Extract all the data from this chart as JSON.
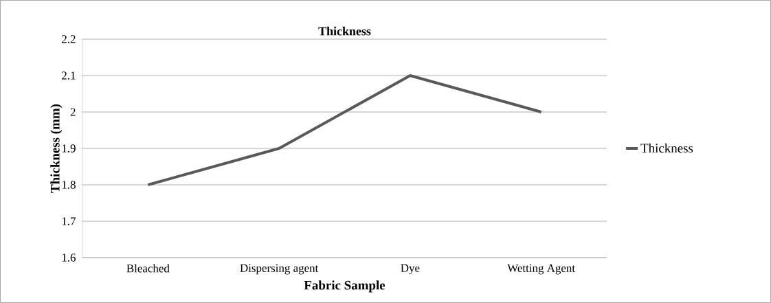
{
  "chart_data": {
    "type": "line",
    "title": "Thickness",
    "xlabel": "Fabric Sample",
    "ylabel": "Thickness (mm)",
    "categories": [
      "Bleached",
      "Dispersing agent",
      "Dye",
      "Wetting Agent"
    ],
    "series": [
      {
        "name": "Thickness",
        "color": "#595959",
        "values": [
          1.8,
          1.9,
          2.1,
          2.0
        ]
      }
    ],
    "ylim": [
      1.6,
      2.2
    ],
    "yticks": [
      1.6,
      1.7,
      1.8,
      1.9,
      2,
      2.1,
      2.2
    ],
    "grid": "y",
    "legend": "right",
    "marker": "none"
  }
}
